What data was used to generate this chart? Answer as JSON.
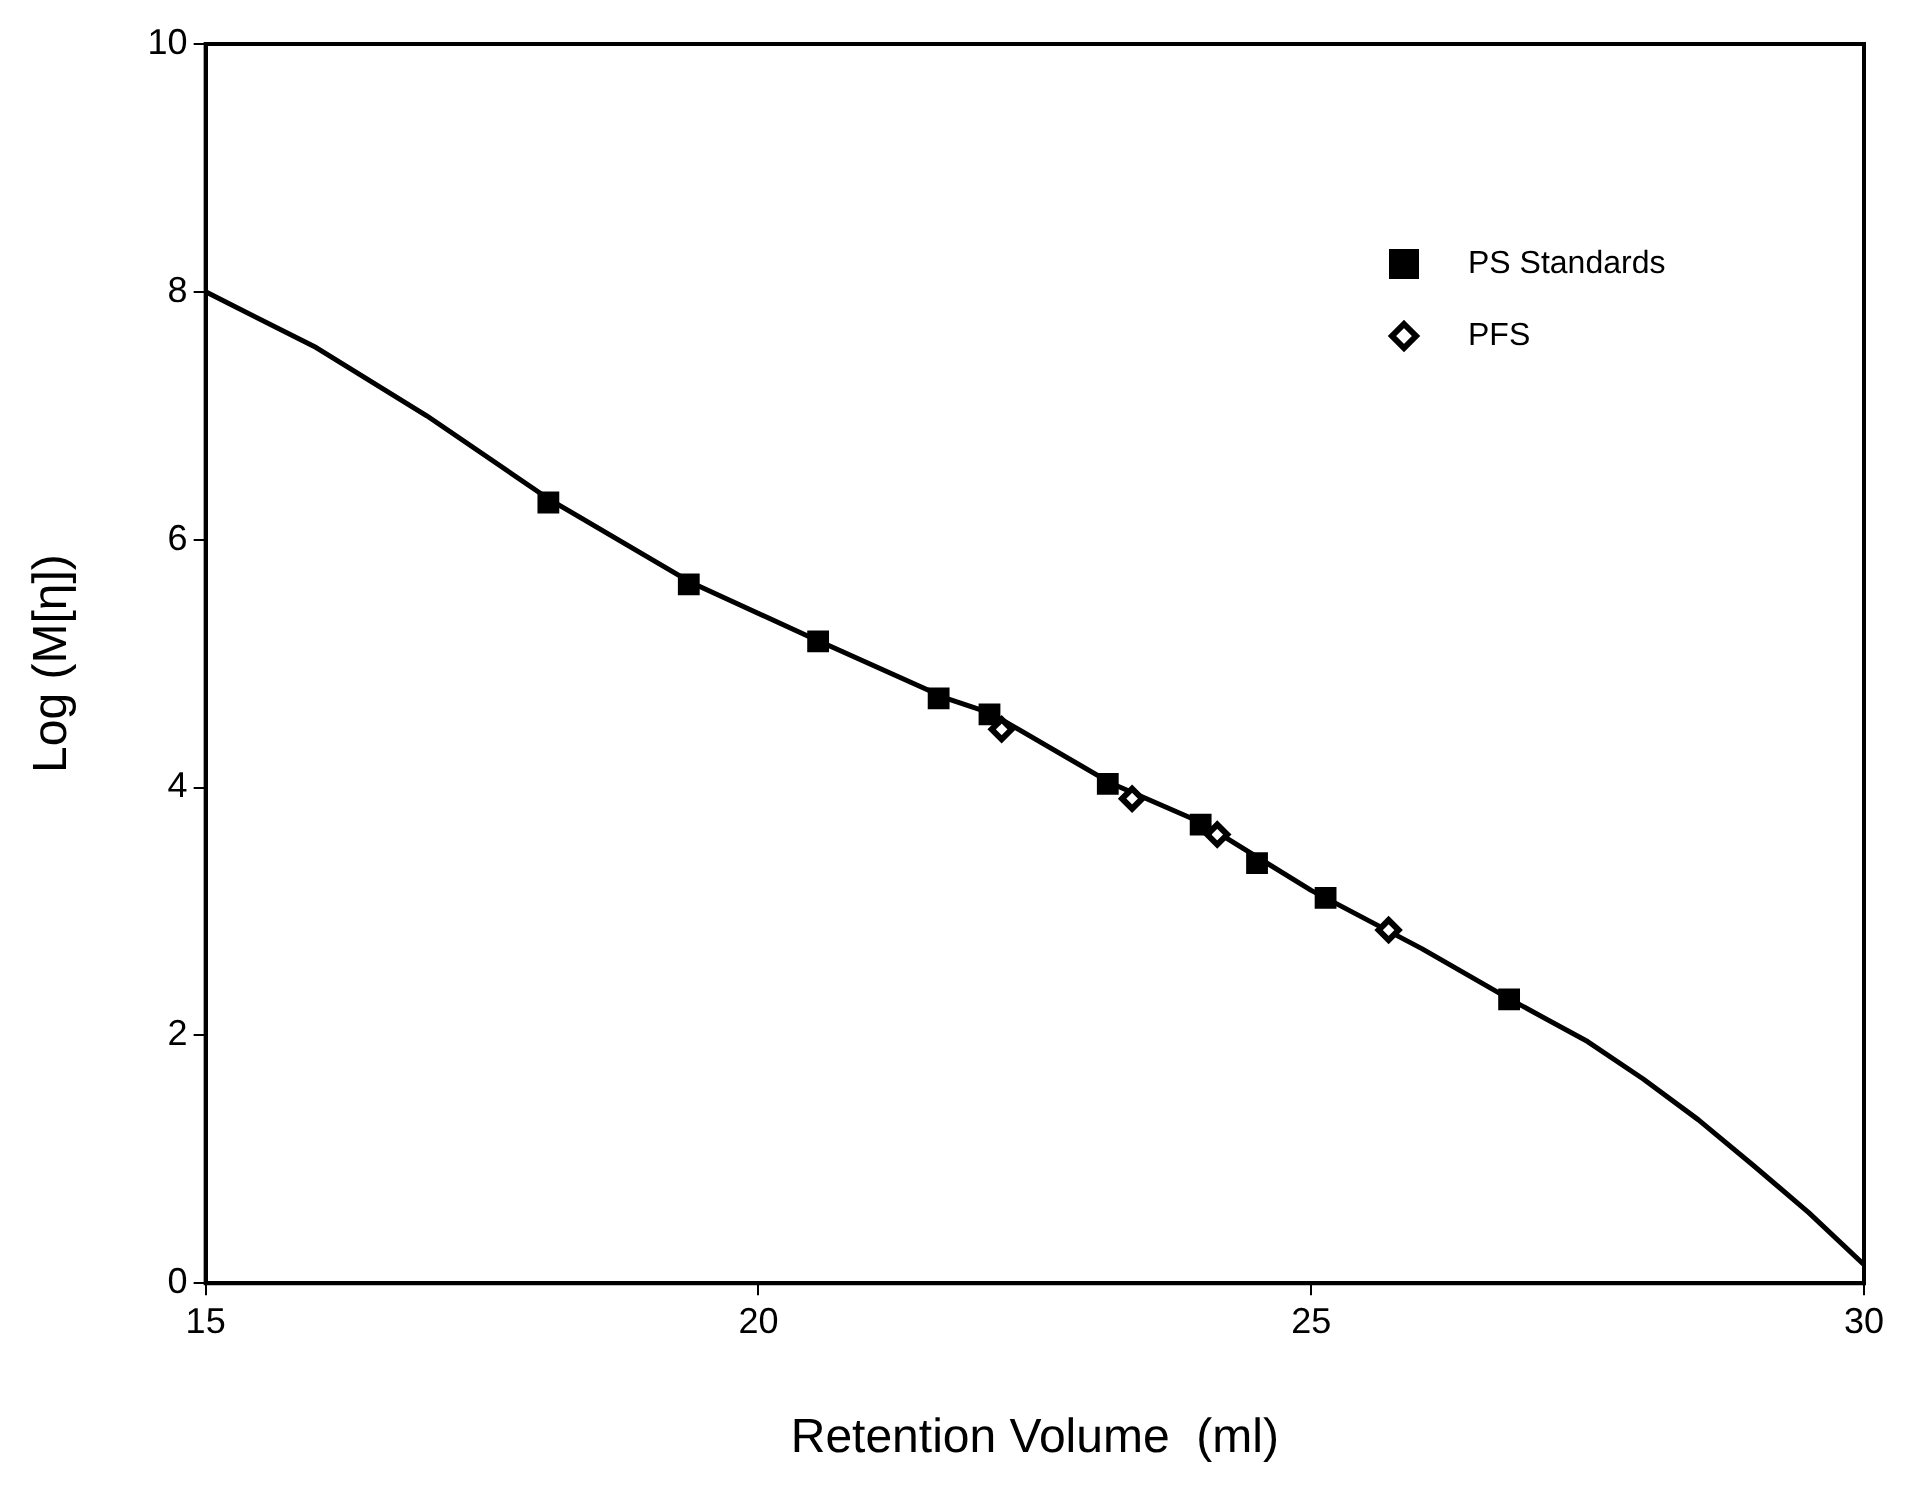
{
  "chart_data": {
    "type": "scatter",
    "xlabel": "Retention Volume  (ml)",
    "ylabel": "Log (M[η])",
    "xlim": [
      15,
      30
    ],
    "xticks": [
      15,
      20,
      25,
      30
    ],
    "ylim": [
      0,
      10
    ],
    "yticks": [
      0,
      2,
      4,
      6,
      8,
      10
    ],
    "grid": false,
    "legend": "top right",
    "series": [
      {
        "type": "line",
        "color": "#000000",
        "marker": "none",
        "line_style": "solid",
        "x": [
          15,
          16,
          17,
          18.1,
          19.4,
          20.5,
          21.7,
          22.1,
          23.2,
          24.0,
          25.0,
          26.0,
          26.8,
          27.5,
          28.0,
          28.5,
          29.0,
          29.5,
          30.0
        ],
        "values": [
          8.0,
          7.55,
          7.0,
          6.33,
          5.65,
          5.2,
          4.72,
          4.6,
          4.03,
          3.72,
          3.17,
          2.7,
          2.29,
          1.95,
          1.65,
          1.32,
          0.95,
          0.57,
          0.15
        ]
      },
      {
        "type": "scatter",
        "name": "PS Standards",
        "color": "#000000",
        "marker": "square",
        "x": [
          18.1,
          19.37,
          20.54,
          21.63,
          22.09,
          23.16,
          24.0,
          24.51,
          25.13,
          26.79
        ],
        "values": [
          6.3,
          5.64,
          5.18,
          4.72,
          4.59,
          4.03,
          3.7,
          3.39,
          3.11,
          2.29
        ]
      },
      {
        "type": "scatter",
        "name": "PFS",
        "color": "#000000",
        "marker": "diamond",
        "x": [
          22.2,
          23.38,
          24.15,
          25.7
        ],
        "values": [
          4.47,
          3.91,
          3.62,
          2.85
        ]
      }
    ]
  }
}
